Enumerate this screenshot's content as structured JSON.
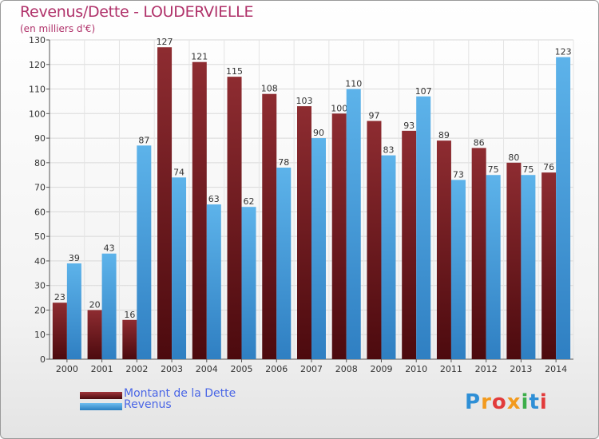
{
  "title": "Revenus/Dette - LOUDERVIELLE",
  "subtitle": "(en milliers d'€)",
  "colors": {
    "dette": "#7a1f24",
    "revenus": "#4aa3e0",
    "title": "#b0326a",
    "legend_text": "#4a66e6"
  },
  "legend": [
    {
      "label": "Montant de la Dette",
      "color": "#7a1f24"
    },
    {
      "label": "Revenus",
      "color": "#4aa3e0"
    }
  ],
  "logo": {
    "text": "Proxiti"
  },
  "chart_data": {
    "type": "bar",
    "title": "Revenus/Dette - LOUDERVIELLE",
    "subtitle": "(en milliers d'€)",
    "xlabel": "",
    "ylabel": "",
    "ylim": [
      0,
      130
    ],
    "ytick_step": 10,
    "grid": true,
    "legend_position": "bottom-left",
    "categories": [
      "2000",
      "2001",
      "2002",
      "2003",
      "2004",
      "2005",
      "2006",
      "2007",
      "2008",
      "2009",
      "2010",
      "2011",
      "2012",
      "2013",
      "2014"
    ],
    "series": [
      {
        "name": "Montant de la Dette",
        "values": [
          23,
          20,
          16,
          127,
          121,
          115,
          108,
          103,
          100,
          97,
          93,
          89,
          86,
          80,
          76
        ]
      },
      {
        "name": "Revenus",
        "values": [
          39,
          43,
          87,
          74,
          63,
          62,
          78,
          90,
          110,
          83,
          107,
          73,
          75,
          75,
          123
        ]
      }
    ]
  }
}
